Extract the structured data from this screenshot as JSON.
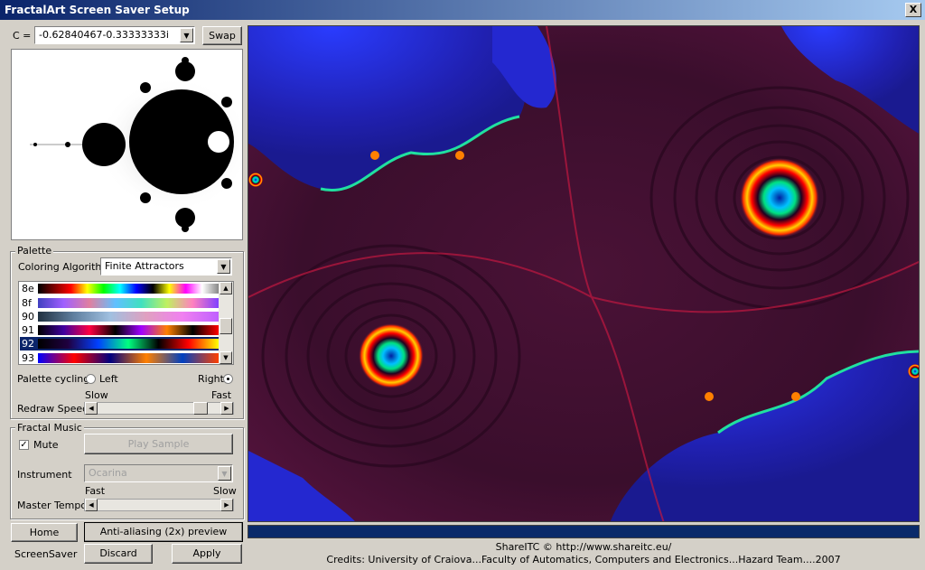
{
  "window": {
    "title": "FractalArt Screen Saver Setup",
    "close_label": "X"
  },
  "c_param": {
    "label": "C =",
    "value": "-0.62840467-0.33333333i",
    "swap_label": "Swap"
  },
  "palette": {
    "group_label": "Palette",
    "coloring_label": "Coloring Algorithm",
    "coloring_value": "Finite Attractors",
    "items": [
      {
        "id": "8e"
      },
      {
        "id": "8f"
      },
      {
        "id": "90"
      },
      {
        "id": "91"
      },
      {
        "id": "92"
      },
      {
        "id": "93"
      }
    ],
    "selected": "92",
    "cycling_label": "Palette cycling",
    "left_label": "Left",
    "right_label": "Right",
    "cycling_direction": "Right",
    "slow_label": "Slow",
    "fast_label": "Fast",
    "redraw_label": "Redraw Speed"
  },
  "music": {
    "group_label": "Fractal Music",
    "mute_label": "Mute",
    "mute_checked": true,
    "play_label": "Play Sample",
    "instrument_label": "Instrument",
    "instrument_value": "Ocarina",
    "fast_label": "Fast",
    "slow_label": "Slow",
    "tempo_label": "Master Tempo"
  },
  "buttons": {
    "home": "Home",
    "antialias": "Anti-aliasing (2x) preview",
    "screensaver": "ScreenSaver",
    "discard": "Discard",
    "apply": "Apply"
  },
  "footer": {
    "line1": "ShareITC © http://www.shareitc.eu/",
    "line2": "Credits: University of Craiova...Faculty of Automatics, Computers and Electronics...Hazard Team....2007"
  },
  "colors": {
    "title_bar": "#0a246a",
    "progress": "#0a2a6a",
    "fractal_bg": "#4a1030"
  }
}
